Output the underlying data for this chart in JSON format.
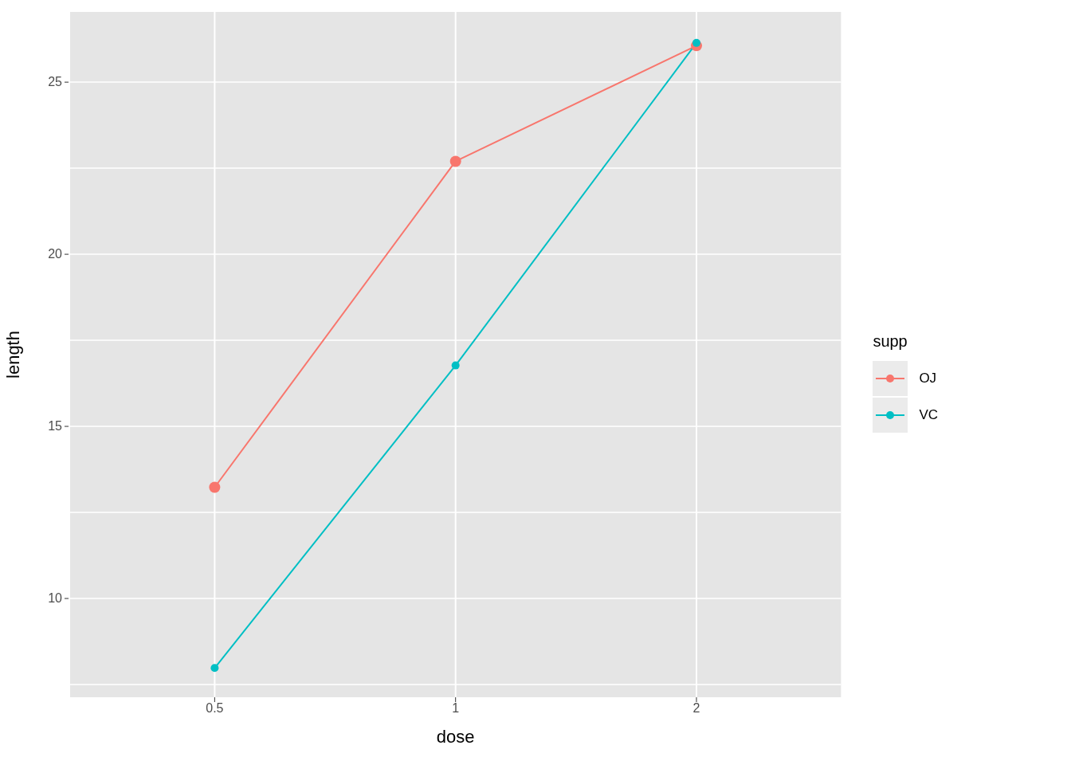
{
  "chart_data": {
    "type": "line",
    "xlabel": "dose",
    "ylabel": "length",
    "legend_title": "supp",
    "categories": [
      "0.5",
      "1",
      "2"
    ],
    "series": [
      {
        "name": "OJ",
        "color": "#f8766d",
        "values": [
          13.23,
          22.7,
          26.06
        ]
      },
      {
        "name": "VC",
        "color": "#00bfc4",
        "values": [
          7.98,
          16.77,
          26.14
        ]
      }
    ],
    "ylim": [
      7.13,
      27.04
    ],
    "yticks": [
      {
        "value": 7.5,
        "label": null
      },
      10,
      {
        "value": 12.5,
        "label": null
      },
      15,
      {
        "value": 17.5,
        "label": null
      },
      20,
      {
        "value": 22.5,
        "label": null
      },
      25
    ],
    "grid": true,
    "legend": "right",
    "marker": "circle",
    "line_style": "solid"
  }
}
